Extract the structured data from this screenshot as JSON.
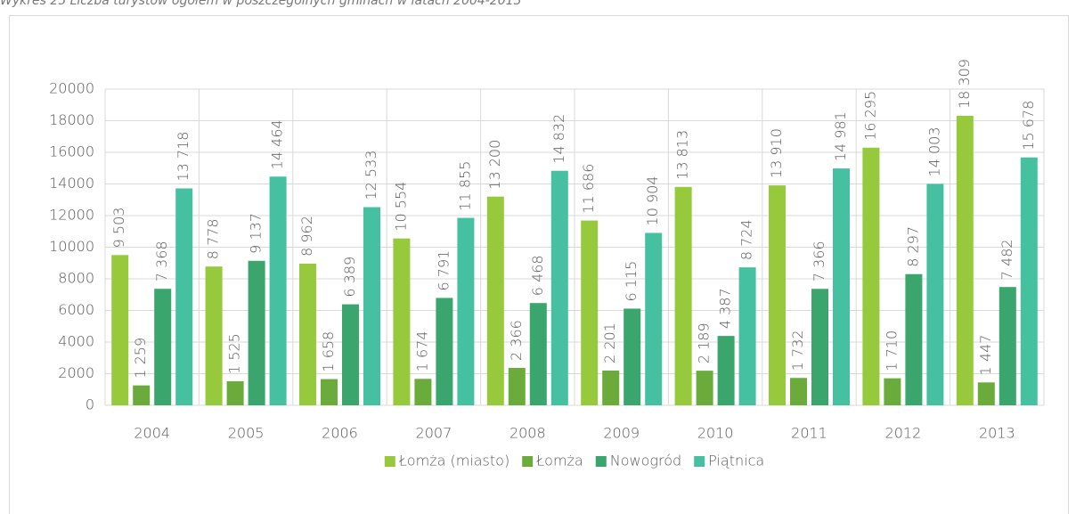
{
  "chart_data": {
    "type": "bar",
    "title": "Wykres 25 Liczba turystów ogółem w poszczególnych gminach w latach 2004-2013",
    "categories": [
      "2004",
      "2005",
      "2006",
      "2007",
      "2008",
      "2009",
      "2010",
      "2011",
      "2012",
      "2013"
    ],
    "series": [
      {
        "name": "Łomża (miasto)",
        "color": "#97c93d",
        "values": [
          9503,
          8778,
          8962,
          10554,
          13200,
          11686,
          13813,
          13910,
          16295,
          18309
        ],
        "value_labels": [
          "9 503",
          "8 778",
          "8 962",
          "10 554",
          "13 200",
          "11 686",
          "13 813",
          "13 910",
          "16 295",
          "18 309"
        ]
      },
      {
        "name": "Łomża",
        "color": "#6aab3b",
        "values": [
          1259,
          1525,
          1658,
          1674,
          2366,
          2201,
          2189,
          1732,
          1710,
          1447
        ],
        "value_labels": [
          "1 259",
          "1 525",
          "1 658",
          "1 674",
          "2 366",
          "2 201",
          "2 189",
          "1 732",
          "1 710",
          "1 447"
        ]
      },
      {
        "name": "Nowogród",
        "color": "#3aa56c",
        "values": [
          7368,
          9137,
          6389,
          6791,
          6468,
          6115,
          4387,
          7366,
          8297,
          7482
        ],
        "value_labels": [
          "7 368",
          "9 137",
          "6 389",
          "6 791",
          "6 468",
          "6 115",
          "4 387",
          "7 366",
          "8 297",
          "7 482"
        ]
      },
      {
        "name": "Piątnica",
        "color": "#45c1a1",
        "values": [
          13718,
          14464,
          12533,
          11855,
          14832,
          10904,
          8724,
          14981,
          14003,
          15678
        ],
        "value_labels": [
          "13 718",
          "14 464",
          "12 533",
          "11 855",
          "14 832",
          "10 904",
          "8 724",
          "14 981",
          "14 003",
          "15 678"
        ]
      }
    ],
    "ylim": [
      0,
      20000
    ],
    "yticks": [
      0,
      2000,
      4000,
      6000,
      8000,
      10000,
      12000,
      14000,
      16000,
      18000,
      20000
    ],
    "grid": true,
    "legend": "bottom"
  }
}
